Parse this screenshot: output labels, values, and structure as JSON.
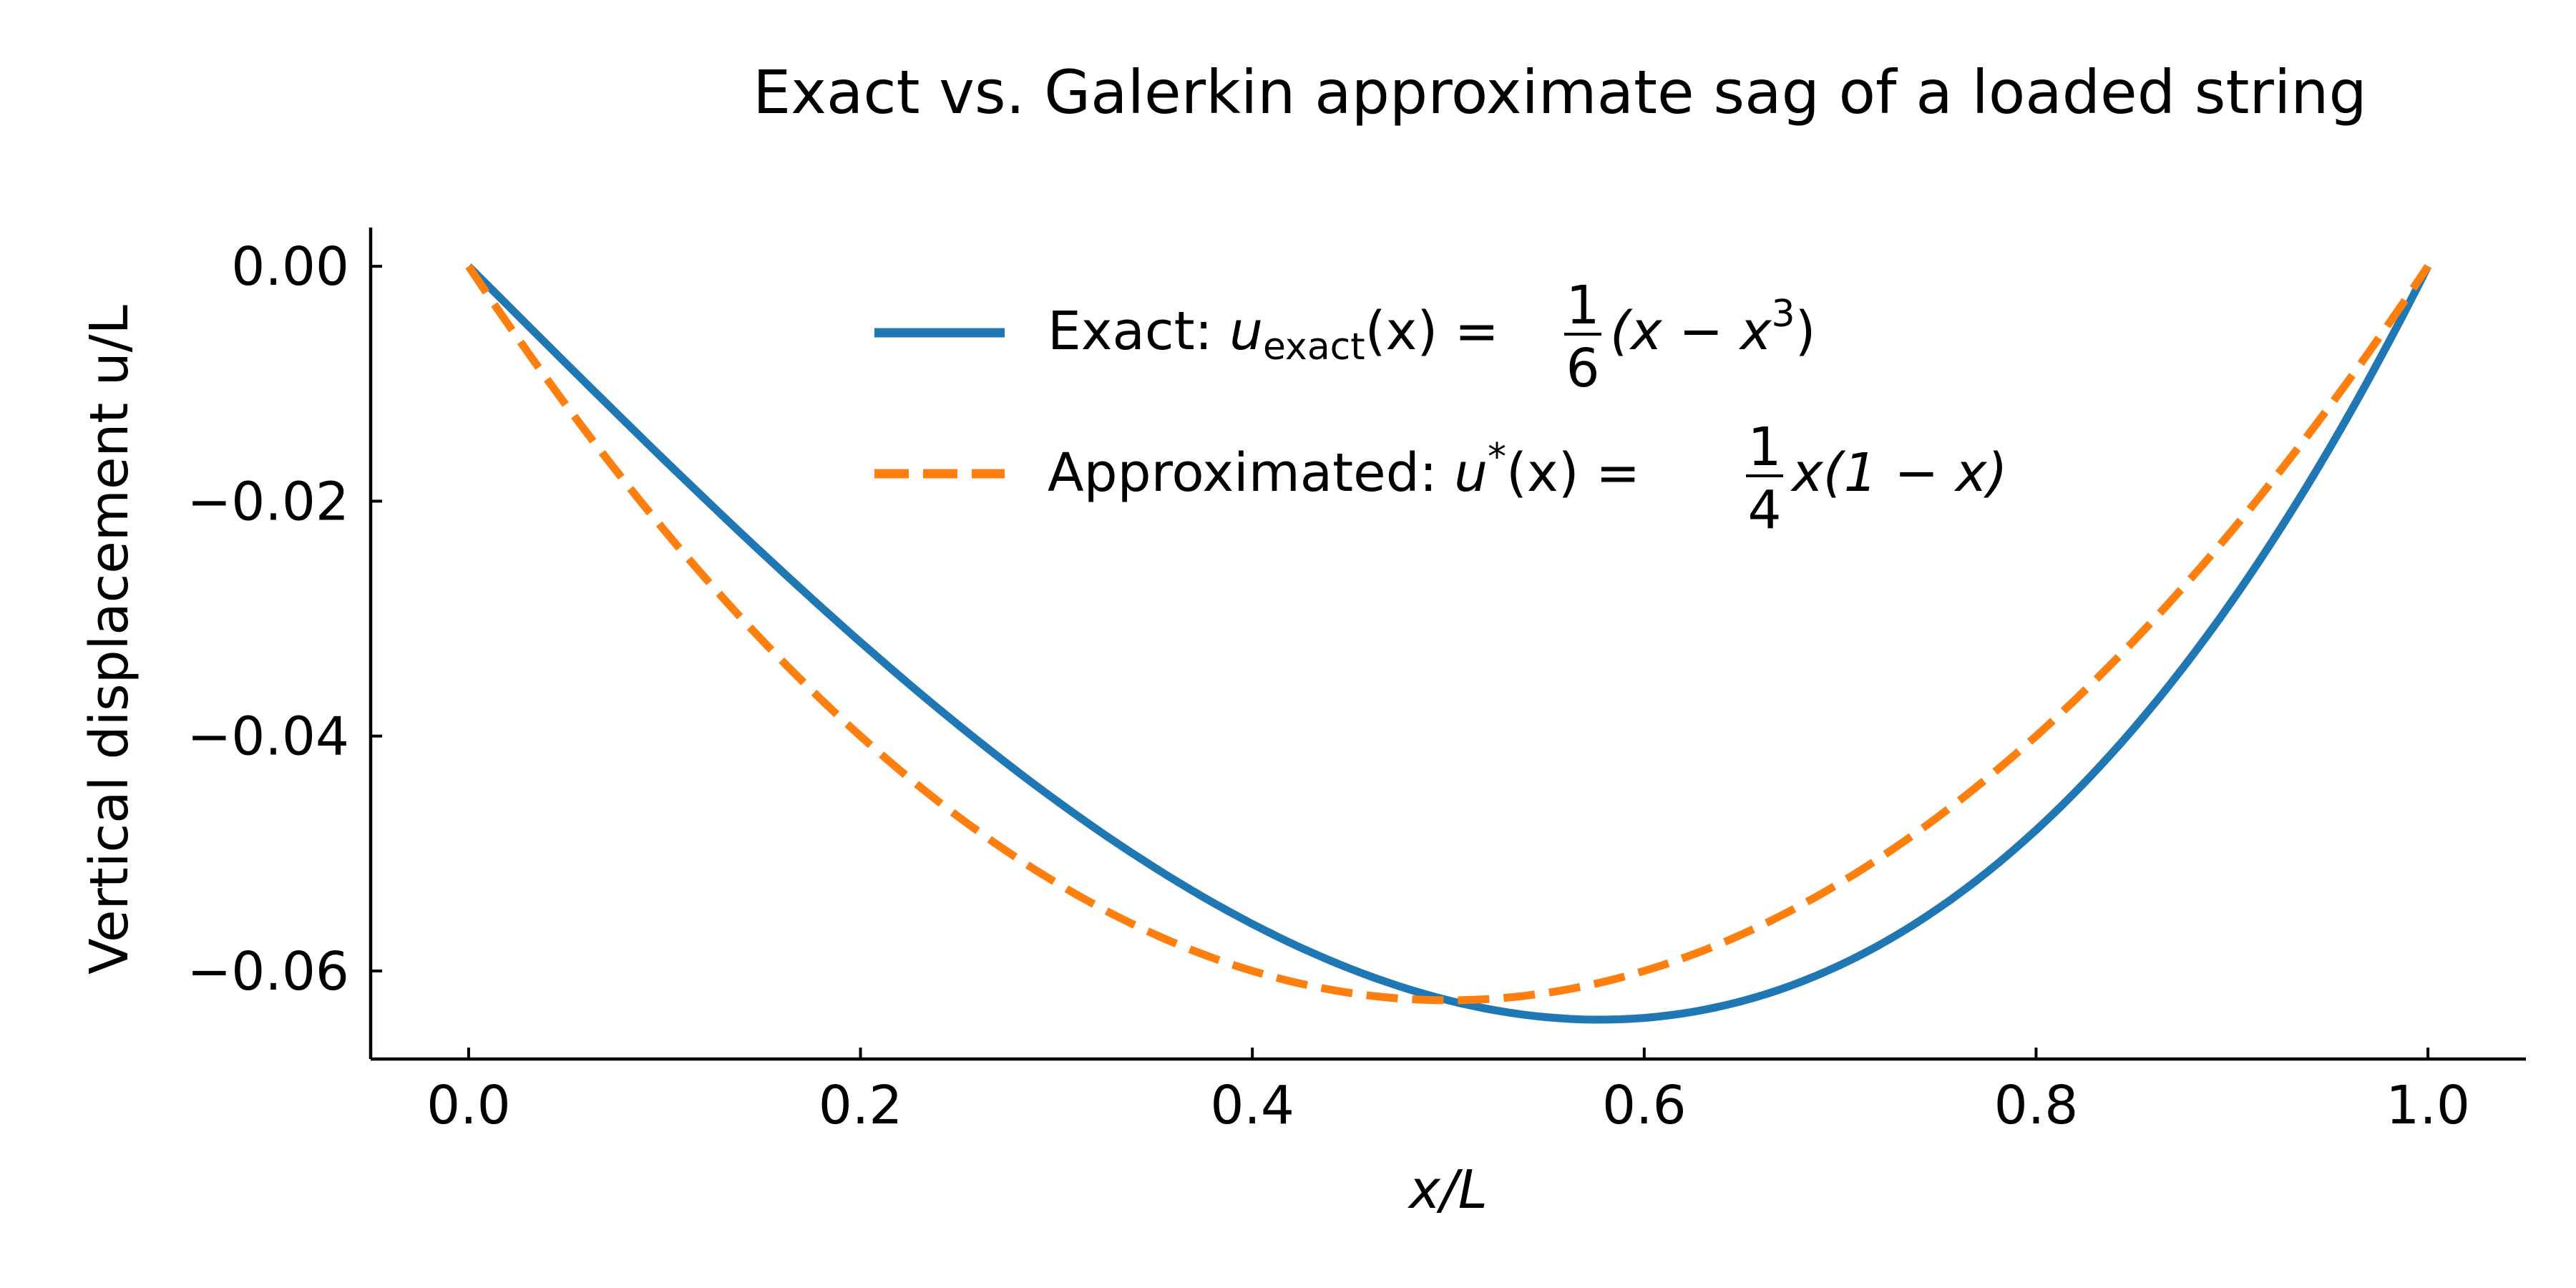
{
  "chart_data": {
    "type": "line",
    "title": "Exact vs. Galerkin approximate sag of a loaded string",
    "xlabel": "x/L",
    "ylabel": "Vertical displacement u/L",
    "xlim": [
      -0.05,
      1.05
    ],
    "ylim": [
      -0.0675,
      0.0033
    ],
    "xticks": [
      0.0,
      0.2,
      0.4,
      0.6,
      0.8,
      1.0
    ],
    "xtick_labels": [
      "0.0",
      "0.2",
      "0.4",
      "0.6",
      "0.8",
      "1.0"
    ],
    "yticks": [
      0.0,
      -0.02,
      -0.04,
      -0.06
    ],
    "ytick_labels": [
      "0.00",
      "−0.02",
      "−0.04",
      "−0.06"
    ],
    "grid": false,
    "legend_position": "top-center",
    "series": [
      {
        "name": "Exact: u_exact(x) = 1/6 (x − x³)",
        "color": "#1f77b4",
        "dash": "solid",
        "x": [
          0,
          0.05,
          0.1,
          0.15,
          0.2,
          0.25,
          0.3,
          0.35,
          0.4,
          0.45,
          0.5,
          0.55,
          0.6,
          0.65,
          0.7,
          0.75,
          0.8,
          0.85,
          0.9,
          0.95,
          1.0
        ],
        "y": [
          0,
          -0.00831,
          -0.0165,
          -0.02444,
          -0.032,
          -0.03906,
          -0.0455,
          -0.05119,
          -0.056,
          -0.05981,
          -0.0625,
          -0.06394,
          -0.064,
          -0.06256,
          -0.0595,
          -0.05469,
          -0.048,
          -0.03931,
          -0.0285,
          -0.01544,
          0
        ]
      },
      {
        "name": "Approximated: u*(x) = 1/4 x(1 − x)",
        "color": "#ff7f0e",
        "dash": "dashed",
        "x": [
          0,
          0.05,
          0.1,
          0.15,
          0.2,
          0.25,
          0.3,
          0.35,
          0.4,
          0.45,
          0.5,
          0.55,
          0.6,
          0.65,
          0.7,
          0.75,
          0.8,
          0.85,
          0.9,
          0.95,
          1.0
        ],
        "y": [
          0,
          -0.01188,
          -0.0225,
          -0.03188,
          -0.04,
          -0.04688,
          -0.0525,
          -0.05688,
          -0.06,
          -0.06188,
          -0.0625,
          -0.06188,
          -0.06,
          -0.05688,
          -0.0525,
          -0.04688,
          -0.04,
          -0.03188,
          -0.0225,
          -0.01188,
          0
        ]
      }
    ],
    "legend": {
      "exact": {
        "prefix": "Exact: ",
        "u": "u",
        "sub": "exact",
        "args": "(x)",
        "eq": " = ",
        "frac_num": "1",
        "frac_den": "6",
        "expr": "(x − x",
        "sup": "3",
        "close": ")"
      },
      "approx": {
        "prefix": "Approximated: ",
        "u": "u",
        "sup": "*",
        "args": "(x)",
        "eq": " = ",
        "frac_num": "1",
        "frac_den": "4",
        "expr": "x(1 − x)"
      }
    }
  }
}
